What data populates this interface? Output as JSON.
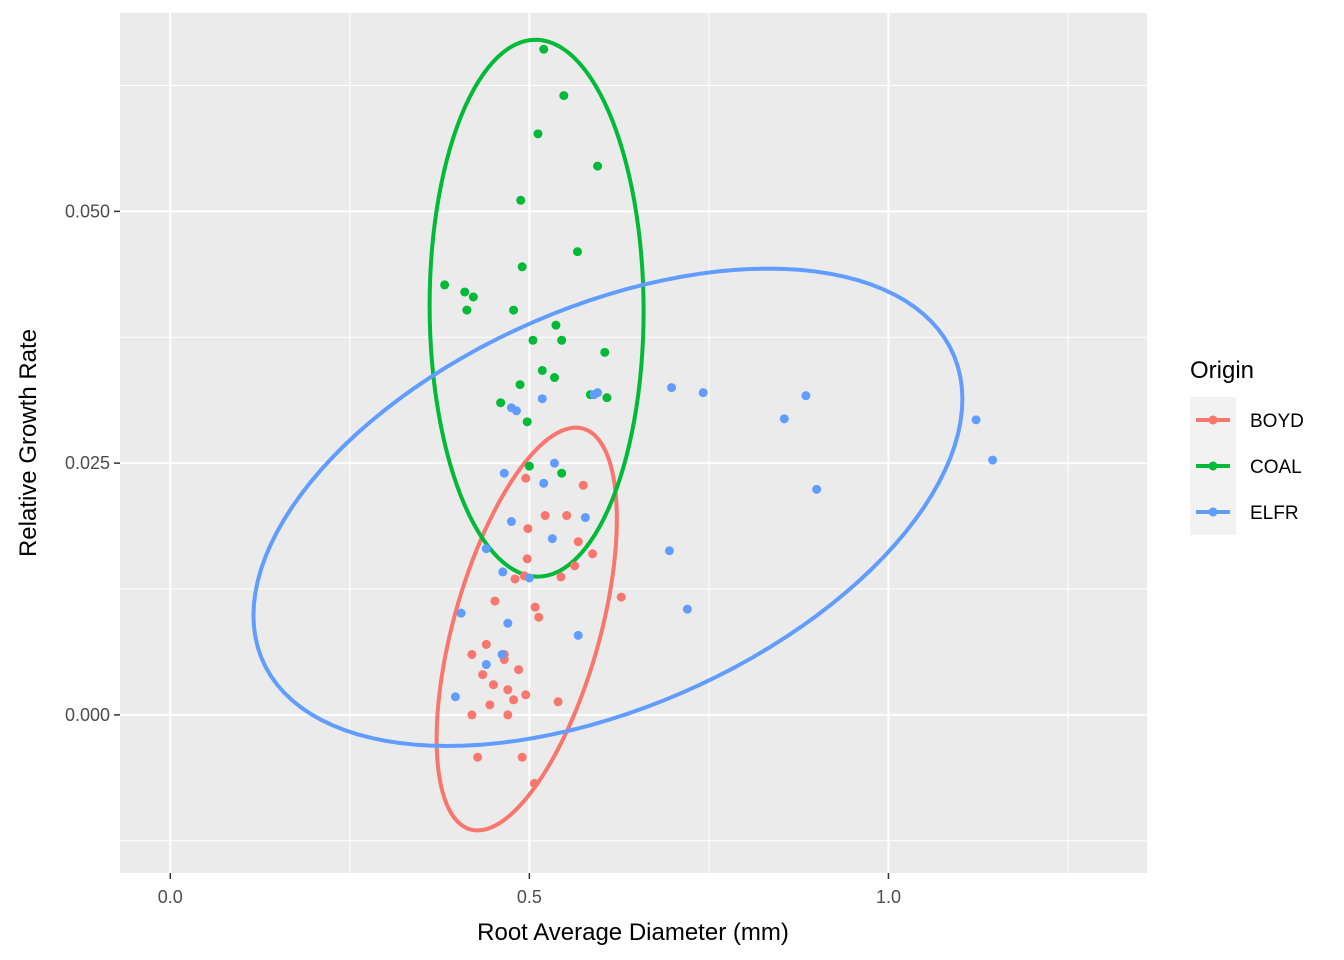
{
  "chart_data": {
    "type": "scatter",
    "xlabel": "Root Average Diameter (mm)",
    "ylabel": "Relative Growth Rate",
    "xlim": [
      -0.07,
      1.36
    ],
    "ylim": [
      -0.0157,
      0.0697
    ],
    "x_ticks": [
      {
        "value": 0.0,
        "label": "0.0"
      },
      {
        "value": 0.5,
        "label": "0.5"
      },
      {
        "value": 1.0,
        "label": "1.0"
      }
    ],
    "x_minor_ticks": [
      0.25,
      0.75,
      1.25
    ],
    "y_ticks": [
      {
        "value": 0.0,
        "label": "0.000"
      },
      {
        "value": 0.025,
        "label": "0.025"
      },
      {
        "value": 0.05,
        "label": "0.050"
      }
    ],
    "y_minor_ticks": [
      -0.0125,
      0.0125,
      0.0375,
      0.0625
    ],
    "grid": true,
    "panel_background": "#ebebeb",
    "legend": {
      "title": "Origin",
      "position": "right"
    },
    "series": [
      {
        "name": "BOYD",
        "color": "#F8766D",
        "points": [
          [
            0.42,
            0.006
          ],
          [
            0.435,
            0.004
          ],
          [
            0.44,
            0.007
          ],
          [
            0.445,
            0.001
          ],
          [
            0.45,
            0.003
          ],
          [
            0.465,
            0.006
          ],
          [
            0.47,
            0.0025
          ],
          [
            0.47,
            0.0
          ],
          [
            0.478,
            0.0015
          ],
          [
            0.485,
            0.0045
          ],
          [
            0.48,
            0.0135
          ],
          [
            0.493,
            0.0138
          ],
          [
            0.497,
            0.0155
          ],
          [
            0.452,
            0.0113
          ],
          [
            0.508,
            0.0107
          ],
          [
            0.513,
            0.0097
          ],
          [
            0.522,
            0.0198
          ],
          [
            0.544,
            0.0137
          ],
          [
            0.552,
            0.0198
          ],
          [
            0.568,
            0.0172
          ],
          [
            0.563,
            0.0148
          ],
          [
            0.588,
            0.016
          ],
          [
            0.575,
            0.0228
          ],
          [
            0.628,
            0.0117
          ],
          [
            0.495,
            0.0235
          ],
          [
            0.498,
            0.0185
          ],
          [
            0.42,
            0.0
          ],
          [
            0.428,
            -0.0042
          ],
          [
            0.49,
            -0.0042
          ],
          [
            0.507,
            -0.0068
          ],
          [
            0.495,
            0.002
          ],
          [
            0.54,
            0.0013
          ],
          [
            0.465,
            0.0055
          ]
        ],
        "ellipse": {
          "center": [
            0.487,
            0.0079
          ],
          "semi_a_deg_points": [
            [
              0.562,
              0.0271
            ],
            [
              0.413,
              -0.0113
            ]
          ]
        }
      },
      {
        "name": "COAL",
        "color": "#00BA38",
        "points": [
          [
            0.52,
            0.0661
          ],
          [
            0.548,
            0.0615
          ],
          [
            0.512,
            0.0577
          ],
          [
            0.595,
            0.0545
          ],
          [
            0.488,
            0.0511
          ],
          [
            0.567,
            0.046
          ],
          [
            0.49,
            0.0445
          ],
          [
            0.382,
            0.0427
          ],
          [
            0.41,
            0.042
          ],
          [
            0.422,
            0.0415
          ],
          [
            0.413,
            0.0402
          ],
          [
            0.478,
            0.0402
          ],
          [
            0.537,
            0.0387
          ],
          [
            0.545,
            0.0372
          ],
          [
            0.505,
            0.0372
          ],
          [
            0.605,
            0.036
          ],
          [
            0.518,
            0.0342
          ],
          [
            0.535,
            0.0335
          ],
          [
            0.487,
            0.0328
          ],
          [
            0.608,
            0.0315
          ],
          [
            0.585,
            0.0318
          ],
          [
            0.46,
            0.031
          ],
          [
            0.497,
            0.0291
          ],
          [
            0.5,
            0.0247
          ],
          [
            0.545,
            0.024
          ]
        ],
        "ellipse": {
          "center": [
            0.512,
            0.0395
          ]
        }
      },
      {
        "name": "ELFR",
        "color": "#619CFF",
        "points": [
          [
            1.122,
            0.0293
          ],
          [
            1.145,
            0.0253
          ],
          [
            0.885,
            0.0317
          ],
          [
            0.855,
            0.0294
          ],
          [
            0.9,
            0.0224
          ],
          [
            0.742,
            0.032
          ],
          [
            0.698,
            0.0325
          ],
          [
            0.595,
            0.032
          ],
          [
            0.59,
            0.0318
          ],
          [
            0.518,
            0.0314
          ],
          [
            0.475,
            0.0305
          ],
          [
            0.482,
            0.0302
          ],
          [
            0.465,
            0.024
          ],
          [
            0.535,
            0.025
          ],
          [
            0.52,
            0.023
          ],
          [
            0.578,
            0.0196
          ],
          [
            0.475,
            0.0192
          ],
          [
            0.532,
            0.0175
          ],
          [
            0.695,
            0.0163
          ],
          [
            0.44,
            0.0165
          ],
          [
            0.463,
            0.0142
          ],
          [
            0.5,
            0.0136
          ],
          [
            0.72,
            0.0105
          ],
          [
            0.405,
            0.0101
          ],
          [
            0.47,
            0.0091
          ],
          [
            0.568,
            0.0079
          ],
          [
            0.462,
            0.006
          ],
          [
            0.44,
            0.005
          ],
          [
            0.397,
            0.0018
          ]
        ],
        "ellipse": {
          "center": [
            0.56,
            0.02
          ]
        }
      }
    ]
  }
}
